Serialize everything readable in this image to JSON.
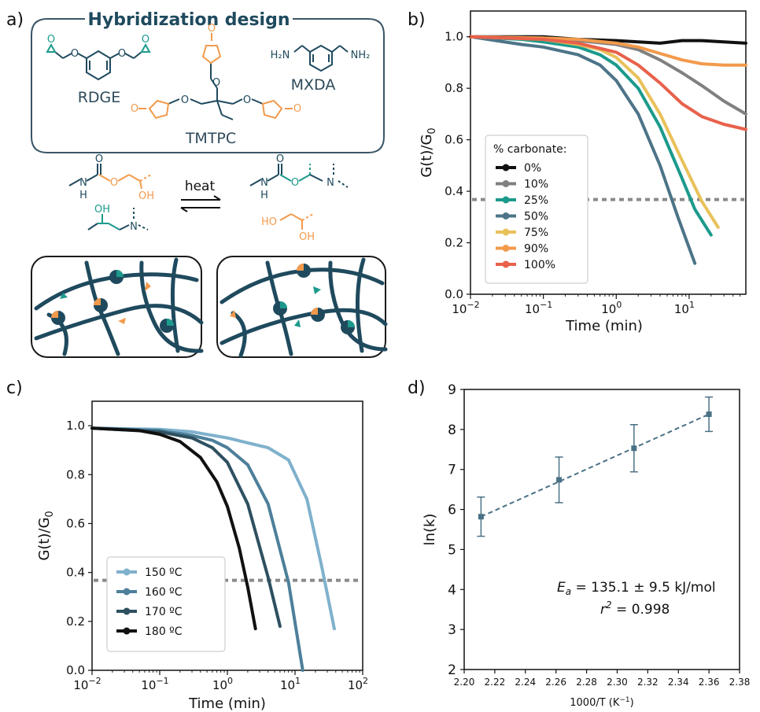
{
  "panel_labels": [
    "a)",
    "b)",
    "c)",
    "d)"
  ],
  "scheme": {
    "title": "Hybridization design",
    "compounds": [
      "RDGE",
      "TMTPC",
      "MXDA"
    ],
    "mxda_groups": [
      "H₂N",
      "NH₂"
    ],
    "reaction_label": "heat",
    "atoms": {
      "O": "O",
      "N": "N",
      "H": "H",
      "OH": "OH",
      "HO": "HO"
    },
    "colors": {
      "navy": "#1f4a5e",
      "teal": "#1c9a8c",
      "orange": "#f29a4c",
      "box": "#3a5566"
    }
  },
  "chart_data": [
    {
      "panel": "b)",
      "type": "line",
      "xlabel": "Time (min)",
      "ylabel": "G(t)/G",
      "ylabel_sub": "0",
      "xscale": "log",
      "xlim": [
        0.01,
        60
      ],
      "ylim": [
        0.0,
        1.1
      ],
      "xticks": [
        {
          "v": 0.01,
          "base": "10",
          "exp": "−2"
        },
        {
          "v": 0.1,
          "base": "10",
          "exp": "−1"
        },
        {
          "v": 1,
          "base": "10",
          "exp": "0"
        },
        {
          "v": 10,
          "base": "10",
          "exp": "1"
        }
      ],
      "yticks": [
        "0.0",
        "0.2",
        "0.4",
        "0.6",
        "0.8",
        "1.0"
      ],
      "reference_line": 0.368,
      "legend": {
        "title": "% carbonate:",
        "placement": "lower-left"
      },
      "series": [
        {
          "name": "0%",
          "color": "#111111",
          "x": [
            0.01,
            0.1,
            0.3,
            1,
            2,
            4,
            8,
            15,
            30,
            60
          ],
          "y": [
            1.0,
            1.0,
            0.99,
            0.985,
            0.98,
            0.975,
            0.985,
            0.985,
            0.98,
            0.975
          ]
        },
        {
          "name": "10%",
          "color": "#808080",
          "x": [
            0.01,
            0.1,
            0.3,
            1,
            2,
            4,
            8,
            15,
            30,
            60
          ],
          "y": [
            1.0,
            0.995,
            0.985,
            0.97,
            0.95,
            0.91,
            0.86,
            0.81,
            0.75,
            0.7
          ]
        },
        {
          "name": "25%",
          "color": "#1c9a8c",
          "x": [
            0.01,
            0.05,
            0.1,
            0.3,
            0.6,
            1,
            2,
            4,
            8,
            12,
            20
          ],
          "y": [
            1.0,
            0.99,
            0.98,
            0.96,
            0.93,
            0.89,
            0.8,
            0.65,
            0.45,
            0.33,
            0.23
          ]
        },
        {
          "name": "50%",
          "color": "#4d7488",
          "x": [
            0.01,
            0.05,
            0.1,
            0.3,
            0.6,
            1,
            2,
            4,
            7,
            12
          ],
          "y": [
            1.0,
            0.97,
            0.96,
            0.93,
            0.89,
            0.83,
            0.7,
            0.5,
            0.3,
            0.12
          ]
        },
        {
          "name": "75%",
          "color": "#e8c15a",
          "x": [
            0.01,
            0.1,
            0.3,
            0.6,
            1,
            2,
            4,
            8,
            15,
            25
          ],
          "y": [
            1.0,
            0.99,
            0.97,
            0.95,
            0.92,
            0.84,
            0.7,
            0.52,
            0.36,
            0.26
          ]
        },
        {
          "name": "90%",
          "color": "#f29a4c",
          "x": [
            0.01,
            0.1,
            0.3,
            1,
            2,
            4,
            8,
            15,
            30,
            60
          ],
          "y": [
            1.0,
            0.995,
            0.99,
            0.975,
            0.96,
            0.935,
            0.91,
            0.895,
            0.89,
            0.89
          ]
        },
        {
          "name": "100%",
          "color": "#e8614b",
          "x": [
            0.01,
            0.1,
            0.3,
            1,
            2,
            4,
            8,
            15,
            30,
            60
          ],
          "y": [
            1.0,
            0.99,
            0.975,
            0.94,
            0.89,
            0.82,
            0.74,
            0.69,
            0.66,
            0.64
          ]
        }
      ]
    },
    {
      "panel": "c)",
      "type": "line",
      "xlabel": "Time (min)",
      "ylabel": "G(t)/G",
      "ylabel_sub": "0",
      "xscale": "log",
      "xlim": [
        0.01,
        100
      ],
      "ylim": [
        0.0,
        1.1
      ],
      "xticks": [
        {
          "v": 0.01,
          "base": "10",
          "exp": "−2"
        },
        {
          "v": 0.1,
          "base": "10",
          "exp": "−1"
        },
        {
          "v": 1,
          "base": "10",
          "exp": "0"
        },
        {
          "v": 10,
          "base": "10",
          "exp": "1"
        },
        {
          "v": 100,
          "base": "10",
          "exp": "2"
        }
      ],
      "yticks": [
        "0.0",
        "0.2",
        "0.4",
        "0.6",
        "0.8",
        "1.0"
      ],
      "reference_line": 0.368,
      "legend": {
        "placement": "lower-left"
      },
      "series": [
        {
          "name": "150 ºC",
          "color": "#7fb1cc",
          "x": [
            0.01,
            0.1,
            0.3,
            1,
            2,
            4,
            8,
            15,
            25,
            38
          ],
          "y": [
            0.99,
            0.985,
            0.975,
            0.95,
            0.93,
            0.91,
            0.86,
            0.7,
            0.42,
            0.17
          ]
        },
        {
          "name": "160 ºC",
          "color": "#4d7f9a",
          "x": [
            0.01,
            0.1,
            0.3,
            0.6,
            1,
            2,
            4,
            8,
            13
          ],
          "y": [
            0.99,
            0.98,
            0.96,
            0.94,
            0.91,
            0.84,
            0.68,
            0.36,
            0.0
          ]
        },
        {
          "name": "170 ºC",
          "color": "#2e5060",
          "x": [
            0.01,
            0.1,
            0.3,
            0.6,
            1,
            2,
            4,
            6
          ],
          "y": [
            0.99,
            0.975,
            0.95,
            0.91,
            0.85,
            0.68,
            0.38,
            0.18
          ]
        },
        {
          "name": "180 ºC",
          "color": "#111111",
          "x": [
            0.01,
            0.05,
            0.1,
            0.2,
            0.4,
            0.7,
            1,
            1.5,
            2,
            2.6
          ],
          "y": [
            0.99,
            0.98,
            0.965,
            0.935,
            0.87,
            0.77,
            0.67,
            0.5,
            0.34,
            0.17
          ]
        }
      ]
    },
    {
      "panel": "d)",
      "type": "scatter",
      "xlabel": "1000/T (K",
      "xlabel_sup": "−1",
      "xlabel_end": ")",
      "ylabel": "ln(k)",
      "xlim": [
        2.2,
        2.38
      ],
      "ylim": [
        2,
        9
      ],
      "xticks": [
        "2.20",
        "2.22",
        "2.24",
        "2.26",
        "2.28",
        "2.30",
        "2.32",
        "2.34",
        "2.36",
        "2.38"
      ],
      "yticks": [
        "2",
        "3",
        "4",
        "5",
        "6",
        "7",
        "8",
        "9"
      ],
      "x": [
        2.211,
        2.262,
        2.311,
        2.36
      ],
      "y": [
        5.82,
        6.74,
        7.53,
        8.38
      ],
      "yerr": [
        0.49,
        0.57,
        0.59,
        0.43
      ],
      "fit": {
        "x": [
          2.211,
          2.36
        ],
        "y": [
          5.82,
          8.38
        ]
      },
      "color": "#4a7186",
      "annotation_ea": "E",
      "annotation_ea_sub": "a",
      "annotation_ea_value": " = 135.1 ± 9.5 kJ/mol",
      "annotation_r": "r",
      "annotation_r_sup": "2",
      "annotation_r_value": " = 0.998"
    }
  ]
}
